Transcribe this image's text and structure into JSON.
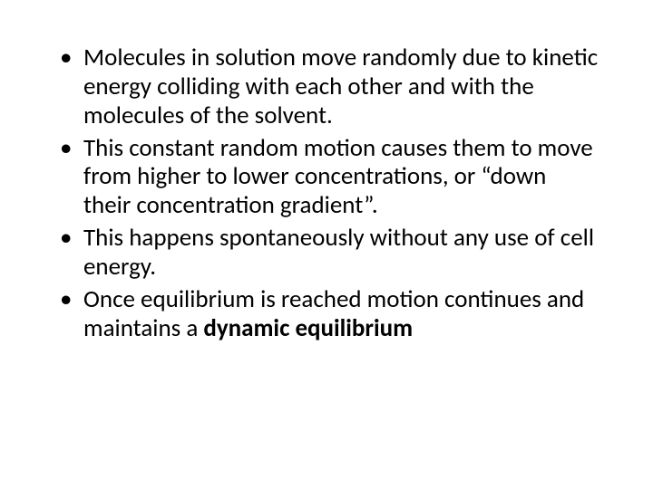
{
  "background_color": "#ffffff",
  "text_color": "#000000",
  "font_family": "Calibri",
  "body_fontsize_pt": 27,
  "line_height": 1.18,
  "bullet_char": "•",
  "bullets": [
    {
      "text": "Molecules in solution move randomly due to kinetic energy colliding with each other and with the molecules of the solvent."
    },
    {
      "text": "This constant random motion causes them to move from higher to lower concentrations, or “down their concentration gradient”."
    },
    {
      "text": "This happens spontaneously without any use of cell energy."
    },
    {
      "prefix": "Once equilibrium is reached motion continues and maintains a ",
      "bold": "dynamic equilibrium"
    }
  ]
}
